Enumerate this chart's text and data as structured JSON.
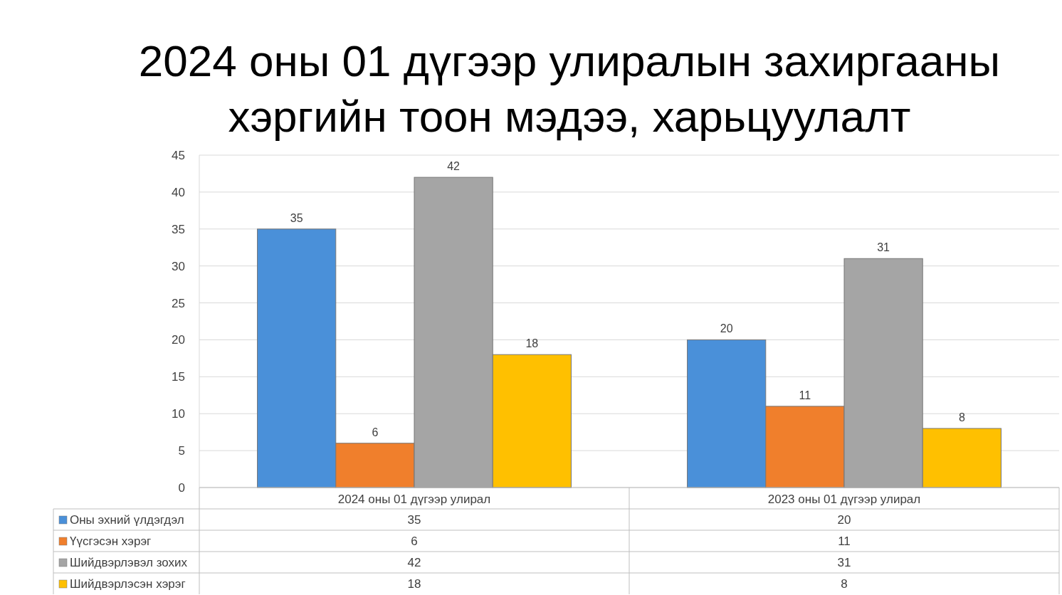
{
  "chart_data": {
    "type": "bar",
    "title": "2024 оны 01 дүгээр улиралын захиргааны\nхэргийн тоон мэдээ, харьцуулалт",
    "categories": [
      "2024 оны 01 дүгээр улирал",
      "2023 оны 01 дүгээр улирал"
    ],
    "series": [
      {
        "name": "Оны эхний үлдэгдэл",
        "color": "#4a90d9",
        "values": [
          35,
          20
        ]
      },
      {
        "name": "Үүсгэсэн хэрэг",
        "color": "#f07f2c",
        "values": [
          6,
          11
        ]
      },
      {
        "name": "Шийдвэрлэвэл зохих",
        "color": "#a5a5a5",
        "values": [
          42,
          31
        ]
      },
      {
        "name": "Шийдвэрлэсэн хэрэг",
        "color": "#ffc000",
        "values": [
          18,
          8
        ]
      }
    ],
    "ylim": [
      0,
      45
    ],
    "yticks": [
      0,
      5,
      10,
      15,
      20,
      25,
      30,
      35,
      40,
      45
    ],
    "annotations": [
      "35",
      "20",
      "6",
      "11",
      "42",
      "31",
      "18",
      "8"
    ],
    "grid": "y",
    "legend": "bottom",
    "data_labels": true
  }
}
